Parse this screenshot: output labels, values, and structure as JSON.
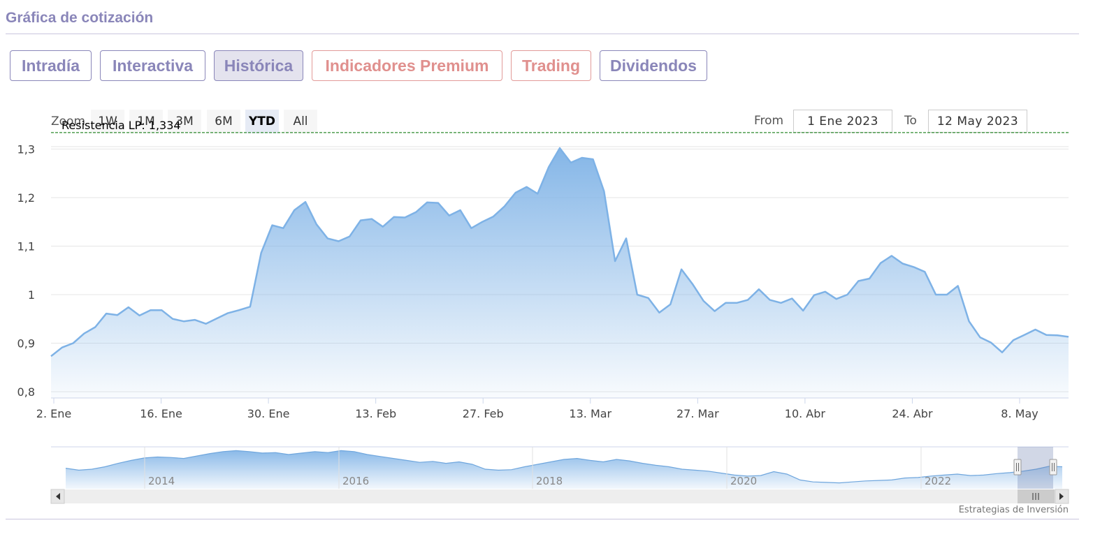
{
  "section_title": "Gráfica de cotización",
  "tabs": [
    {
      "label": "Intradía",
      "state": "normal"
    },
    {
      "label": "Interactiva",
      "state": "normal"
    },
    {
      "label": "Histórica",
      "state": "active"
    },
    {
      "label": "Indicadores Premium",
      "state": "premium"
    },
    {
      "label": "Trading",
      "state": "premium"
    },
    {
      "label": "Dividendos",
      "state": "normal"
    }
  ],
  "zoom": {
    "label": "Zoom",
    "buttons": [
      "1W",
      "1M",
      "3M",
      "6M",
      "YTD",
      "All"
    ],
    "selected": "YTD"
  },
  "range": {
    "from_label": "From",
    "from_value": "1 Ene 2023",
    "to_label": "To",
    "to_value": "12 May 2023"
  },
  "colors": {
    "brand": "#8a86b9",
    "premium": "#e0908e",
    "series_line": "#7eb2e6",
    "resistance": "#2e8b2e"
  },
  "chart_data": {
    "type": "area",
    "resistance": {
      "label": "Resistencia LP: 1,334",
      "value": 1.334
    },
    "y_ticks": [
      {
        "value": 0.8,
        "label": "0,8"
      },
      {
        "value": 0.9,
        "label": "0,9"
      },
      {
        "value": 1.0,
        "label": "1"
      },
      {
        "value": 1.1,
        "label": "1,1"
      },
      {
        "value": 1.2,
        "label": "1,2"
      },
      {
        "value": 1.3,
        "label": "1,3"
      }
    ],
    "ylim": [
      0.787,
      1.305
    ],
    "x_ticks": [
      "2. Ene",
      "16. Ene",
      "30. Ene",
      "13. Feb",
      "27. Feb",
      "13. Mar",
      "27. Mar",
      "10. Abr",
      "24. Abr",
      "8. May"
    ],
    "series": [
      {
        "values": [
          0.873,
          0.891,
          0.9,
          0.92,
          0.933,
          0.961,
          0.958,
          0.974,
          0.957,
          0.968,
          0.968,
          0.95,
          0.945,
          0.948,
          0.94,
          0.951,
          0.962,
          0.968,
          0.975,
          1.086,
          1.143,
          1.137,
          1.174,
          1.191,
          1.145,
          1.116,
          1.11,
          1.12,
          1.153,
          1.156,
          1.14,
          1.16,
          1.159,
          1.17,
          1.19,
          1.189,
          1.163,
          1.174,
          1.137,
          1.15,
          1.161,
          1.182,
          1.21,
          1.222,
          1.208,
          1.263,
          1.302,
          1.272,
          1.282,
          1.279,
          1.213,
          1.069,
          1.116,
          1.0,
          0.993,
          0.963,
          0.98,
          1.052,
          1.022,
          0.987,
          0.966,
          0.983,
          0.983,
          0.989,
          1.011,
          0.989,
          0.983,
          0.992,
          0.967,
          0.999,
          1.006,
          0.991,
          1.0,
          1.028,
          1.033,
          1.065,
          1.08,
          1.064,
          1.057,
          1.047,
          1.0,
          1.0,
          1.018,
          0.945,
          0.912,
          0.901,
          0.881,
          0.906,
          0.917,
          0.928,
          0.917,
          0.916,
          0.913
        ]
      }
    ]
  },
  "navigator": {
    "year_labels": [
      "2014",
      "2016",
      "2018",
      "2020",
      "2022"
    ],
    "values": [
      1.02,
      0.98,
      1.0,
      1.05,
      1.12,
      1.18,
      1.23,
      1.25,
      1.24,
      1.22,
      1.27,
      1.32,
      1.36,
      1.38,
      1.36,
      1.33,
      1.34,
      1.3,
      1.33,
      1.36,
      1.34,
      1.38,
      1.36,
      1.3,
      1.26,
      1.22,
      1.18,
      1.14,
      1.16,
      1.12,
      1.15,
      1.1,
      1.0,
      0.98,
      0.99,
      1.05,
      1.1,
      1.15,
      1.2,
      1.22,
      1.18,
      1.15,
      1.2,
      1.17,
      1.12,
      1.08,
      1.05,
      1.0,
      0.98,
      0.96,
      0.92,
      0.88,
      0.86,
      0.87,
      0.95,
      0.9,
      0.78,
      0.74,
      0.73,
      0.72,
      0.74,
      0.76,
      0.77,
      0.78,
      0.82,
      0.83,
      0.86,
      0.88,
      0.9,
      0.87,
      0.88,
      0.91,
      0.93,
      0.96,
      1.0,
      1.06,
      1.05
    ]
  },
  "credit": "Estrategias de Inversión"
}
